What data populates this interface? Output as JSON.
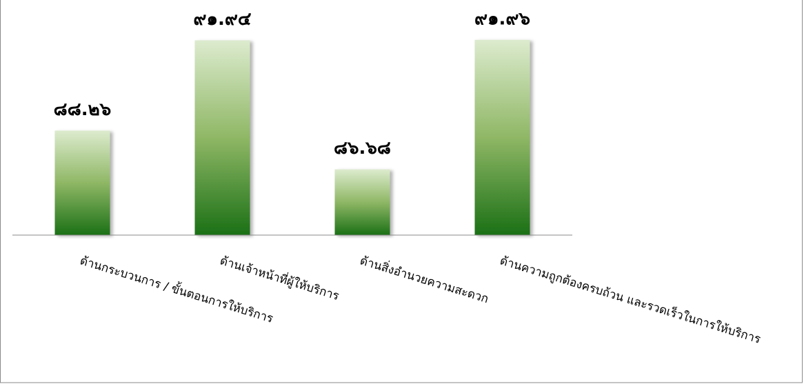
{
  "chart_data": {
    "type": "bar",
    "categories": [
      "ด้านกระบวนการ / ขั้นตอนการให้บริการ",
      "ด้านเจ้าหน้าที่ผู้ให้บริการ",
      "ด้านสิ่งอำนวยความสะดวก",
      "ด้านความถูกต้องครบถ้วน และรวดเร็วในการให้บริการ"
    ],
    "values": [
      88.26,
      91.94,
      86.68,
      91.96
    ],
    "value_labels": [
      "๘๘.๒๖",
      "๙๑.๙๔",
      "๘๖.๖๘",
      "๙๑.๙๖"
    ],
    "color": "#1b7016",
    "ylim": [
      84,
      93.5
    ]
  }
}
